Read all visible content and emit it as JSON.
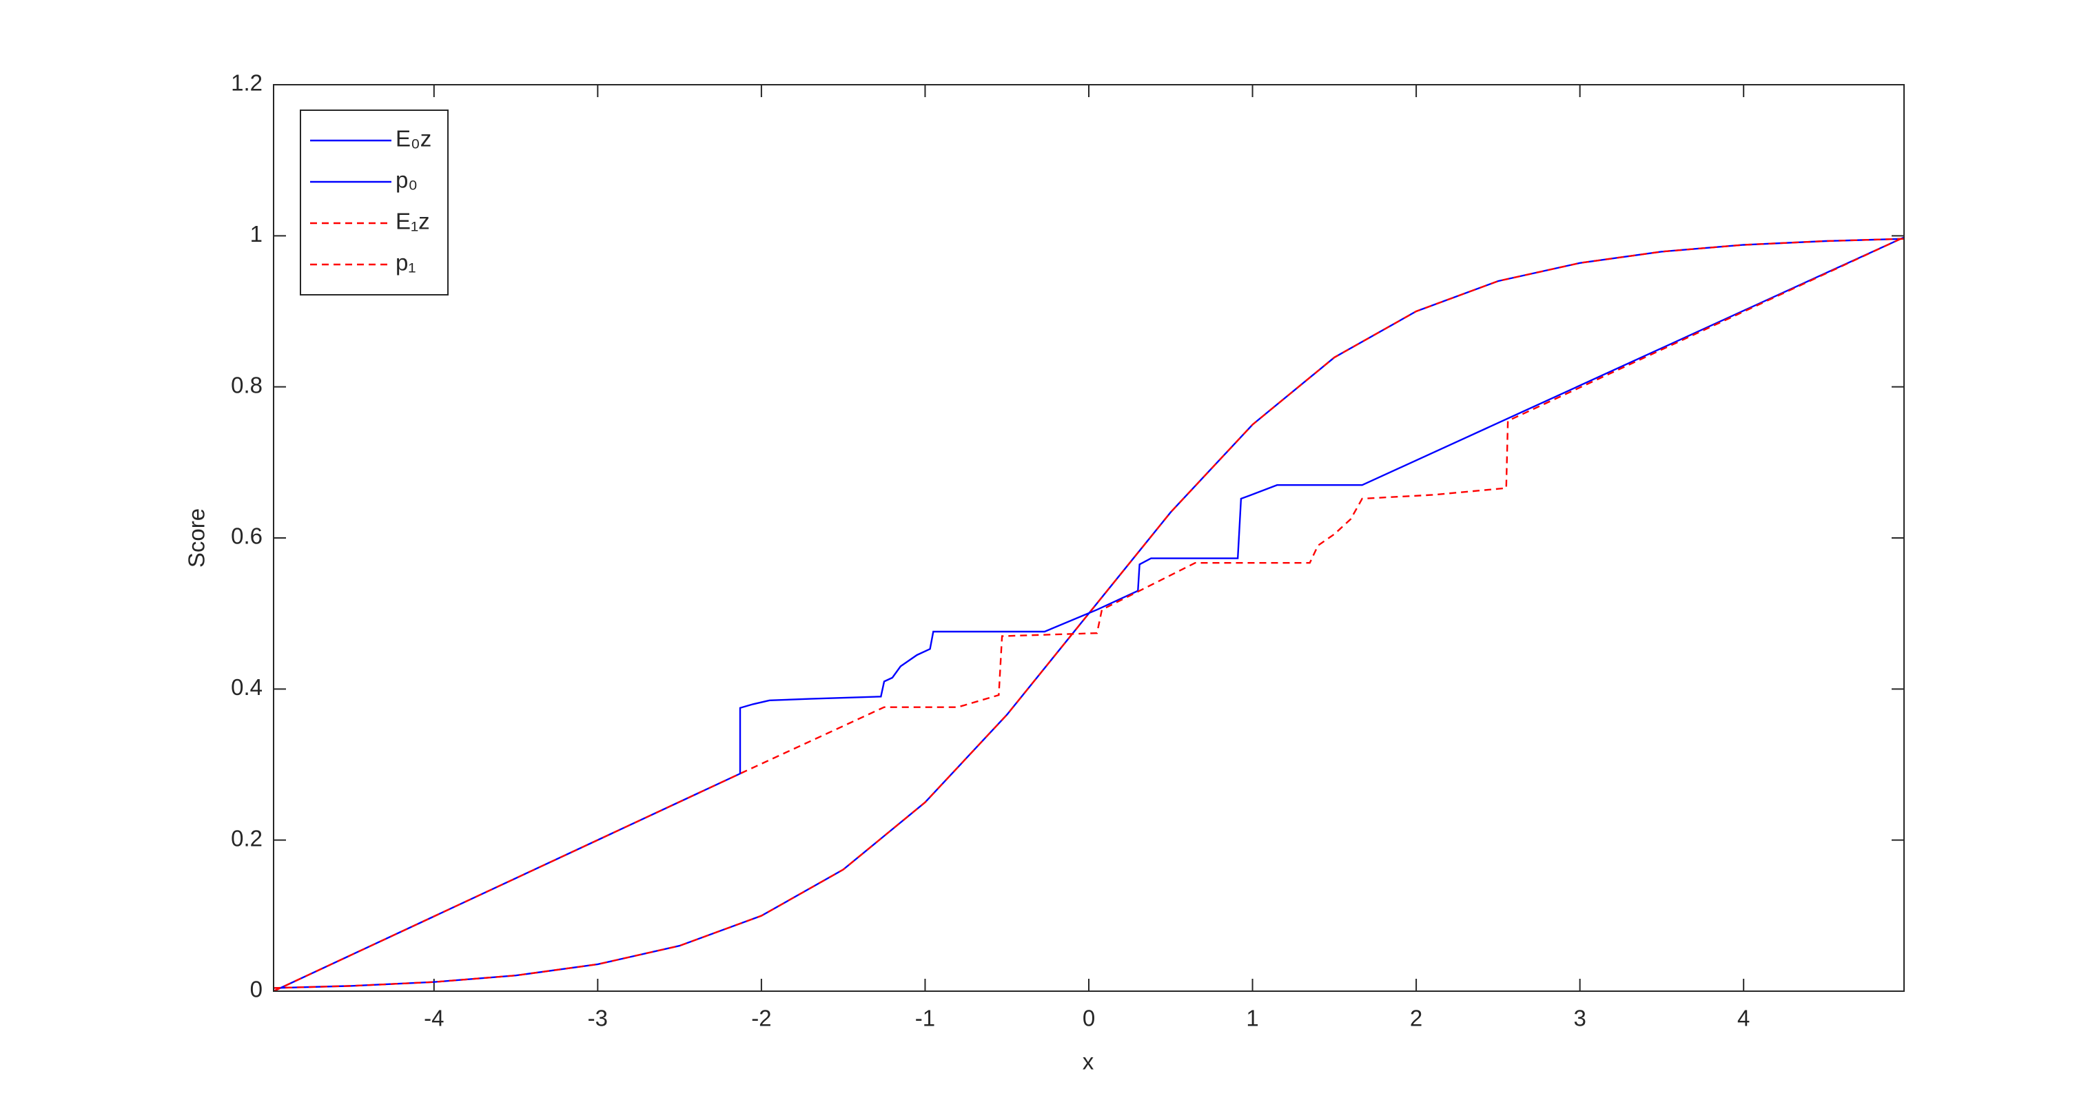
{
  "chart_data": {
    "type": "line",
    "xlabel": "x",
    "ylabel": "Score",
    "xlim": [
      -4.98,
      4.98
    ],
    "ylim": [
      0,
      1.2
    ],
    "xticks": [
      -4,
      -3,
      -2,
      -1,
      0,
      1,
      2,
      3,
      4
    ],
    "yticks": [
      0,
      0.2,
      0.4,
      0.6,
      0.8,
      1,
      1.2
    ],
    "legend": "northwest",
    "series": [
      {
        "name": "E₀z",
        "color": "#0000ff",
        "linestyle": "-",
        "x": [
          -4.98,
          -2.13,
          -2.13,
          -2.05,
          -1.95,
          -1.7,
          -1.27,
          -1.25,
          -1.2,
          -1.15,
          -1.05,
          -0.97,
          -0.95,
          -0.27,
          0.05,
          0.3,
          0.31,
          0.38,
          0.91,
          0.93,
          0.98,
          1.15,
          1.67,
          4.98
        ],
        "values": [
          0,
          0.288,
          0.375,
          0.38,
          0.385,
          0.387,
          0.39,
          0.41,
          0.415,
          0.43,
          0.445,
          0.453,
          0.476,
          0.476,
          0.505,
          0.53,
          0.565,
          0.573,
          0.573,
          0.652,
          0.656,
          0.67,
          0.67,
          0.998
        ]
      },
      {
        "name": "p₀",
        "color": "#0000ff",
        "linestyle": "-",
        "x": [
          -4.98,
          -4.5,
          -4,
          -3.5,
          -3,
          -2.5,
          -2,
          -1.5,
          -1,
          -0.5,
          0,
          0.5,
          1,
          1.5,
          2,
          2.5,
          3,
          3.5,
          4,
          4.5,
          4.98
        ],
        "values": [
          0.0042,
          0.007,
          0.0121,
          0.0208,
          0.0356,
          0.0601,
          0.0998,
          0.161,
          0.25,
          0.366,
          0.5,
          0.634,
          0.75,
          0.839,
          0.9,
          0.94,
          0.964,
          0.979,
          0.988,
          0.993,
          0.996
        ]
      },
      {
        "name": "E₁z",
        "color": "#ff0000",
        "linestyle": "--",
        "x": [
          -4.98,
          -2.13,
          -1.25,
          -0.8,
          -0.55,
          -0.53,
          0.05,
          0.08,
          0.65,
          1.35,
          1.4,
          1.5,
          1.6,
          1.67,
          2.1,
          2.5,
          2.55,
          2.56,
          4.98
        ],
        "values": [
          0,
          0.288,
          0.376,
          0.376,
          0.392,
          0.47,
          0.474,
          0.505,
          0.567,
          0.567,
          0.59,
          0.605,
          0.625,
          0.652,
          0.657,
          0.665,
          0.666,
          0.755,
          0.998
        ]
      },
      {
        "name": "p₁",
        "color": "#ff0000",
        "linestyle": "--",
        "x": [
          -4.98,
          -4.5,
          -4,
          -3.5,
          -3,
          -2.5,
          -2,
          -1.5,
          -1,
          -0.5,
          0,
          0.5,
          1,
          1.5,
          2,
          2.5,
          3,
          3.5,
          4,
          4.5,
          4.98
        ],
        "values": [
          0.0042,
          0.007,
          0.0121,
          0.0208,
          0.0356,
          0.0601,
          0.0998,
          0.161,
          0.25,
          0.366,
          0.5,
          0.634,
          0.75,
          0.839,
          0.9,
          0.94,
          0.964,
          0.979,
          0.988,
          0.993,
          0.996
        ]
      }
    ]
  }
}
